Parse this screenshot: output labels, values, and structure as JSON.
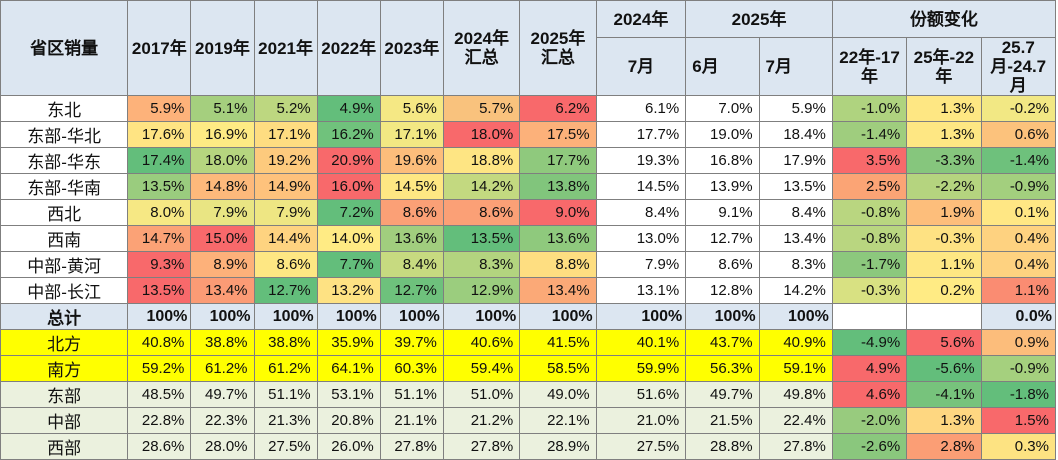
{
  "header": {
    "corner": "省区销量",
    "years": [
      "2017年",
      "2019年",
      "2021年",
      "2022年",
      "2023年",
      "2024年汇总",
      "2025年汇总"
    ],
    "group_2024": "2024年",
    "group_2025": "2025年",
    "month_2024_jul": "7月",
    "month_2025_jun": "6月",
    "month_2025_jul": "7月",
    "share_change": "份额变化",
    "share_cols": [
      "22年-17年",
      "25年-22年",
      "25.7月-24.7月"
    ]
  },
  "rows": [
    {
      "region": "东北",
      "values": [
        "5.9%",
        "5.1%",
        "5.2%",
        "4.9%",
        "5.6%",
        "5.7%",
        "6.2%",
        "6.1%",
        "7.0%",
        "5.9%",
        "-1.0%",
        "1.3%",
        "-0.2%"
      ],
      "colors": [
        "#fdb27a",
        "#a5cf7e",
        "#bdd780",
        "#63be7b",
        "#f5e884",
        "#f9c27d",
        "#f8696b",
        "",
        "",
        "",
        "#afd37f",
        "#fee783",
        "#f2e884"
      ]
    },
    {
      "region": "东部-华北",
      "values": [
        "17.6%",
        "16.9%",
        "17.1%",
        "16.2%",
        "17.1%",
        "18.0%",
        "17.5%",
        "17.7%",
        "19.0%",
        "18.4%",
        "-1.4%",
        "1.3%",
        "0.6%"
      ],
      "colors": [
        "#ffe483",
        "#feeb84",
        "#fedd81",
        "#70c27c",
        "#f2e883",
        "#f8696b",
        "#fcb17a",
        "",
        "",
        "",
        "#9fcd7e",
        "#fee783",
        "#fcc27c"
      ]
    },
    {
      "region": "东部-华东",
      "values": [
        "17.4%",
        "18.0%",
        "19.2%",
        "20.9%",
        "19.6%",
        "18.8%",
        "17.7%",
        "19.3%",
        "16.8%",
        "17.9%",
        "3.5%",
        "-3.3%",
        "-1.4%"
      ],
      "colors": [
        "#63be7b",
        "#b6d57f",
        "#fdca7d",
        "#f8696b",
        "#fcbd7b",
        "#fee583",
        "#8fc97d",
        "",
        "",
        "",
        "#f8696b",
        "#86c67d",
        "#6ec17c"
      ]
    },
    {
      "region": "东部-华南",
      "values": [
        "13.5%",
        "14.8%",
        "14.9%",
        "16.0%",
        "14.5%",
        "14.2%",
        "13.8%",
        "14.5%",
        "13.9%",
        "13.5%",
        "2.5%",
        "-2.2%",
        "-0.9%"
      ],
      "colors": [
        "#9acc7e",
        "#fdb97b",
        "#fec27c",
        "#f8696b",
        "#fee783",
        "#c3d980",
        "#81c57c",
        "",
        "",
        "",
        "#fba475",
        "#b5d47f",
        "#a3cf7e"
      ]
    },
    {
      "region": "西北",
      "values": [
        "8.0%",
        "7.9%",
        "7.9%",
        "7.2%",
        "8.6%",
        "8.6%",
        "9.0%",
        "8.4%",
        "9.1%",
        "8.4%",
        "-0.8%",
        "1.9%",
        "0.1%"
      ],
      "colors": [
        "#f6e884",
        "#e9e583",
        "#eee683",
        "#63be7b",
        "#fba076",
        "#fba076",
        "#f8696b",
        "",
        "",
        "",
        "#b9d680",
        "#fdbe7b",
        "#ffe784"
      ]
    },
    {
      "region": "西南",
      "values": [
        "14.7%",
        "15.0%",
        "14.4%",
        "14.0%",
        "13.6%",
        "13.5%",
        "13.6%",
        "13.0%",
        "12.7%",
        "13.4%",
        "-0.8%",
        "-0.3%",
        "0.4%"
      ],
      "colors": [
        "#fba276",
        "#f8696b",
        "#fed380",
        "#ffeb84",
        "#a1ce7e",
        "#63be7b",
        "#8fc97d",
        "",
        "",
        "",
        "#b9d680",
        "#fee283",
        "#fed280"
      ]
    },
    {
      "region": "中部-黄河",
      "values": [
        "9.3%",
        "8.9%",
        "8.6%",
        "7.7%",
        "8.4%",
        "8.3%",
        "8.8%",
        "7.9%",
        "8.6%",
        "8.3%",
        "-1.7%",
        "1.1%",
        "0.4%"
      ],
      "colors": [
        "#f8696b",
        "#fdb17a",
        "#fee783",
        "#63be7b",
        "#c7da80",
        "#b3d47f",
        "#fede81",
        "",
        "",
        "",
        "#8cc87d",
        "#fee783",
        "#fed280"
      ]
    },
    {
      "region": "中部-长江",
      "values": [
        "13.5%",
        "13.4%",
        "12.7%",
        "13.2%",
        "12.7%",
        "12.9%",
        "13.4%",
        "13.1%",
        "12.8%",
        "14.2%",
        "-0.3%",
        "0.2%",
        "1.1%"
      ],
      "colors": [
        "#f8696b",
        "#fb9b75",
        "#63be7b",
        "#fee283",
        "#6ec17c",
        "#9bcd7e",
        "#fba977",
        "",
        "",
        "",
        "#d8e182",
        "#ffeb84",
        "#fa8c72"
      ]
    }
  ],
  "total": {
    "region": "总计",
    "values": [
      "100%",
      "100%",
      "100%",
      "100%",
      "100%",
      "100%",
      "100%",
      "100%",
      "100%",
      "100%",
      "",
      "",
      "0.0%"
    ]
  },
  "yellow_rows": [
    {
      "region": "北方",
      "values": [
        "40.8%",
        "38.8%",
        "38.8%",
        "35.9%",
        "39.7%",
        "40.6%",
        "41.5%",
        "40.1%",
        "43.7%",
        "40.9%",
        "-4.9%",
        "5.6%",
        "0.9%"
      ],
      "colors": [
        "",
        "",
        "",
        "",
        "",
        "",
        "",
        "",
        "",
        "",
        "#63be7b",
        "#f8696b",
        "#fcbd7b"
      ]
    },
    {
      "region": "南方",
      "values": [
        "59.2%",
        "61.2%",
        "61.2%",
        "64.1%",
        "60.3%",
        "59.4%",
        "58.5%",
        "59.9%",
        "56.3%",
        "59.1%",
        "4.9%",
        "-5.6%",
        "-0.9%"
      ],
      "colors": [
        "",
        "",
        "",
        "",
        "",
        "",
        "",
        "",
        "",
        "",
        "#f8696b",
        "#63be7b",
        "#a5d07e"
      ]
    }
  ],
  "green_rows": [
    {
      "region": "东部",
      "values": [
        "48.5%",
        "49.7%",
        "51.1%",
        "53.1%",
        "51.1%",
        "51.0%",
        "49.0%",
        "51.6%",
        "49.7%",
        "49.8%",
        "4.6%",
        "-4.1%",
        "-1.8%"
      ],
      "colors": [
        "",
        "",
        "",
        "",
        "",
        "",
        "",
        "",
        "",
        "",
        "#f8696b",
        "#77c37c",
        "#63be7b"
      ]
    },
    {
      "region": "中部",
      "values": [
        "22.8%",
        "22.3%",
        "21.3%",
        "20.8%",
        "21.1%",
        "21.2%",
        "22.1%",
        "21.0%",
        "21.5%",
        "22.4%",
        "-2.0%",
        "1.3%",
        "1.5%"
      ],
      "colors": [
        "",
        "",
        "",
        "",
        "",
        "",
        "",
        "",
        "",
        "",
        "#98cb7e",
        "#fed781",
        "#f8696b"
      ]
    },
    {
      "region": "西部",
      "values": [
        "28.6%",
        "28.0%",
        "27.5%",
        "26.0%",
        "27.8%",
        "27.8%",
        "28.9%",
        "27.5%",
        "28.8%",
        "27.8%",
        "-2.6%",
        "2.8%",
        "0.3%"
      ],
      "colors": [
        "",
        "",
        "",
        "",
        "",
        "",
        "",
        "",
        "",
        "",
        "#8ac77d",
        "#fb9e75",
        "#fde382"
      ]
    }
  ]
}
